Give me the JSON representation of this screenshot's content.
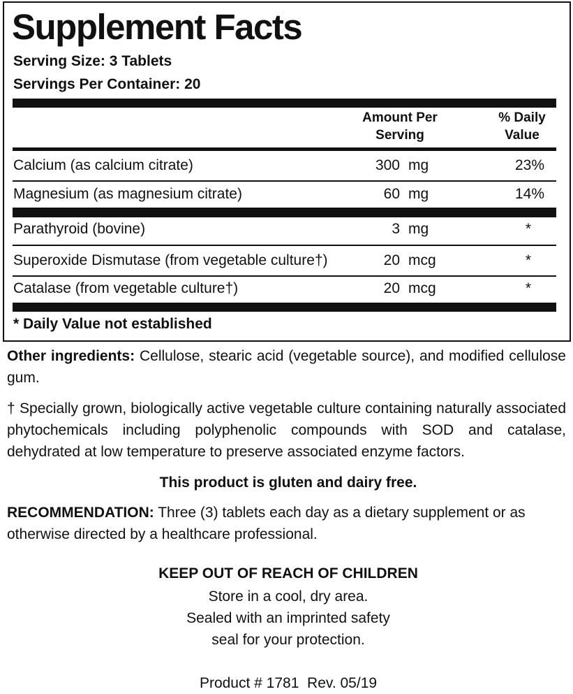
{
  "title": "Supplement Facts",
  "serving_size": "Serving Size: 3 Tablets",
  "servings_per_container": "Servings Per Container: 20",
  "table": {
    "header": {
      "amount": [
        "Amount Per",
        "Serving"
      ],
      "daily_value": [
        "% Daily",
        "Value"
      ]
    },
    "rows": [
      {
        "name": "Calcium (as calcium citrate)",
        "amount": "300",
        "unit": "mg",
        "dv": "23%"
      },
      {
        "name": "Magnesium (as magnesium citrate)",
        "amount": "60",
        "unit": "mg",
        "dv": "14%"
      },
      {
        "name": "Parathyroid (bovine)",
        "amount": "3",
        "unit": "mg",
        "dv": "*"
      },
      {
        "name": "Superoxide Dismutase (from vegetable culture†)",
        "amount": "20",
        "unit": "mcg",
        "dv": "*"
      },
      {
        "name": "Catalase (from vegetable culture†)",
        "amount": "20",
        "unit": "mcg",
        "dv": "*"
      }
    ],
    "footnote": "* Daily Value not established"
  },
  "other_ingredients": {
    "label": "Other ingredients:",
    "text": "Cellulose, stearic acid (vegetable source), and modified cellulose gum."
  },
  "dagger_note": "† Specially grown, biologically active vegetable culture containing naturally associated phytochemicals including polyphenolic compounds with SOD and catalase, dehydrated at low temperature to preserve associated enzyme factors.",
  "gluten": "This product is gluten and dairy free.",
  "recommendation": {
    "label": "RECOMMENDATION:",
    "text": "Three (3) tablets each day as a dietary supplement or as otherwise directed by a healthcare professional."
  },
  "warning": {
    "title": "KEEP OUT OF REACH OF CHILDREN",
    "lines": [
      "Store in a cool, dry area.",
      "Sealed with an imprinted safety",
      "seal for your protection."
    ]
  },
  "product": "Product # 1781  Rev. 05/19"
}
